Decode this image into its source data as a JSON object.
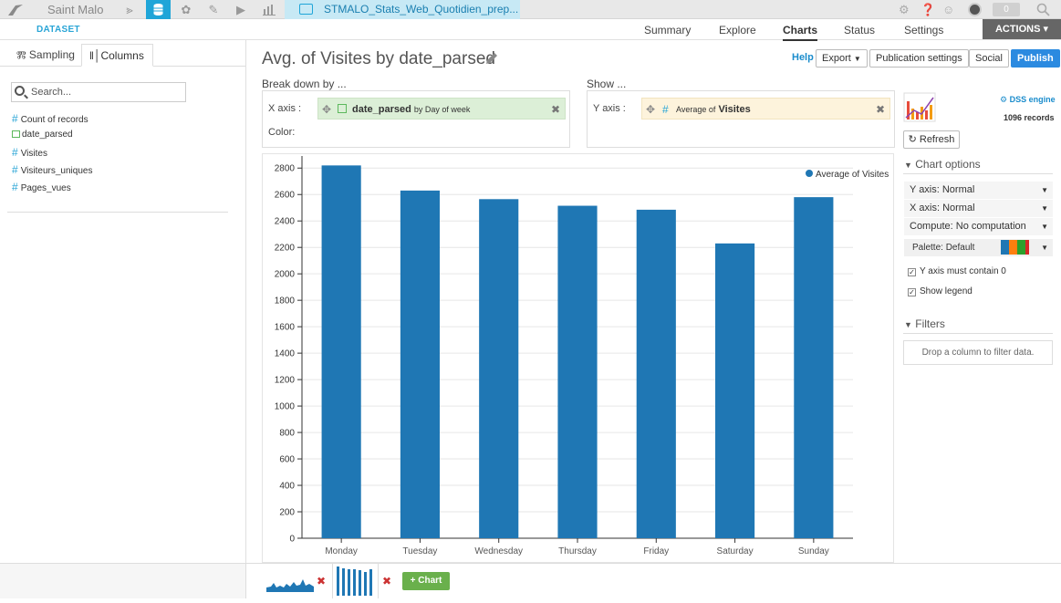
{
  "topbar": {
    "project": "Saint Malo",
    "dataset_tab": "STMALO_Stats_Web_Quotidien_prep...",
    "notification_count": "0",
    "icons": [
      "bird-logo-icon",
      "flow-icon",
      "datasets-icon",
      "recipes-icon",
      "notebooks-icon",
      "play-icon",
      "dashboard-icon",
      "gear-icon",
      "help-icon",
      "users-icon",
      "avatar",
      "search-icon"
    ]
  },
  "subbar": {
    "dataset_label": "DATASET",
    "tabs": [
      "Summary",
      "Explore",
      "Charts",
      "Status",
      "Settings"
    ],
    "actions": "ACTIONS"
  },
  "left": {
    "tabs": {
      "sampling": "Sampling",
      "columns": "Columns"
    },
    "search_placeholder": "Search...",
    "columns": [
      {
        "name": "Count of records",
        "type": "numeric"
      },
      {
        "name": "date_parsed",
        "type": "date"
      },
      {
        "name": "Visites",
        "type": "numeric"
      },
      {
        "name": "Visiteurs_uniques",
        "type": "numeric"
      },
      {
        "name": "Pages_vues",
        "type": "numeric"
      }
    ]
  },
  "main": {
    "title": "Avg. of Visites by date_parsed",
    "help": "Help",
    "export": "Export",
    "publication_settings": "Publication settings",
    "social": "Social",
    "publish": "Publish",
    "breakdown_label": "Break down by ...",
    "show_label": "Show ...",
    "x_axis_label": "X axis :",
    "color_label": "Color:",
    "y_axis_label": "Y axis :",
    "x_pill": {
      "field": "date_parsed",
      "suffix": "by Day of week"
    },
    "y_pill": {
      "prefix": "Average of",
      "field": "Visites"
    }
  },
  "chart_data": {
    "type": "bar",
    "categories": [
      "Monday",
      "Tuesday",
      "Wednesday",
      "Thursday",
      "Friday",
      "Saturday",
      "Sunday"
    ],
    "series": [
      {
        "name": "Average of Visites",
        "values": [
          2820,
          2630,
          2565,
          2515,
          2485,
          2230,
          2580
        ]
      }
    ],
    "ylim": [
      0,
      2850
    ],
    "yticks": [
      0,
      200,
      400,
      600,
      800,
      1000,
      1200,
      1400,
      1600,
      1800,
      2000,
      2200,
      2400,
      2600,
      2800
    ],
    "grid": true,
    "legend": "top-right",
    "bar_color": "#1f77b4"
  },
  "right": {
    "dss_engine": "DSS engine",
    "records": "1096 records",
    "refresh": "Refresh",
    "chart_options": "Chart options",
    "y_axis": "Y axis: Normal",
    "x_axis": "X axis: Normal",
    "compute": "Compute: No computation",
    "palette": "Palette: Default",
    "y_contain_zero": "Y axis must contain 0",
    "show_legend": "Show legend",
    "filters": "Filters",
    "filter_drop": "Drop a column to filter data."
  },
  "bottom": {
    "add_chart": "+ Chart"
  }
}
